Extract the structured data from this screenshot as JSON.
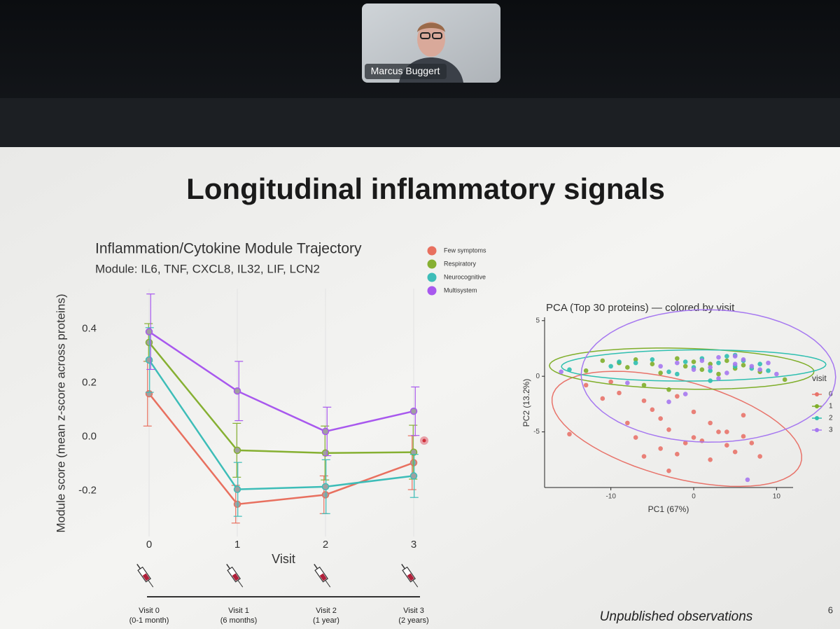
{
  "video_tile": {
    "participant": "Marcus Buggert"
  },
  "slide": {
    "title": "Longitudinal inflammatory signals",
    "footer": "Unpublished observations",
    "page_number": 6
  },
  "chart_data": [
    {
      "type": "line",
      "title": "Inflammation/Cytokine Module Trajectory",
      "subtitle": "Module: IL6, TNF, CXCL8, IL32, LIF, LCN2",
      "xlabel": "Visit",
      "ylabel": "Module score (mean z-score across proteins)",
      "categories": [
        "0",
        "1",
        "2",
        "3"
      ],
      "series": [
        {
          "name": "Few symptoms",
          "color": "#e8705f",
          "values": [
            0.16,
            -0.25,
            -0.215,
            -0.096
          ],
          "errors": [
            0.12,
            0.07,
            0.07,
            0.1
          ]
        },
        {
          "name": "Respiratory",
          "color": "#86b032",
          "values": [
            0.35,
            -0.05,
            -0.06,
            -0.057
          ],
          "errors": [
            0.07,
            0.1,
            0.1,
            0.1
          ]
        },
        {
          "name": "Neurocognitive",
          "color": "#3dbdb8",
          "values": [
            0.285,
            -0.195,
            -0.185,
            -0.145
          ],
          "errors": [
            0.12,
            0.1,
            0.1,
            0.08
          ]
        },
        {
          "name": "Multisystem",
          "color": "#a858ee",
          "values": [
            0.39,
            0.17,
            0.02,
            0.095
          ],
          "errors": [
            0.14,
            0.11,
            0.09,
            0.09
          ]
        }
      ],
      "ylim": [
        -0.37,
        0.55
      ],
      "yticks": [
        -0.2,
        {
          "value": 0,
          "label": "0.0"
        },
        0.2,
        0.4
      ],
      "legend": "top right",
      "grid": true
    },
    {
      "type": "scatter",
      "title": "PCA (Top 30 proteins) — colored by visit",
      "xlabel": "PC1 (67%)",
      "ylabel": "PC2 (13.2%)",
      "legend_title": "visit",
      "series": [
        {
          "name": "0",
          "color": "#e8736a",
          "x": [
            -15,
            -13,
            -11,
            -9,
            -8,
            -7,
            -6,
            -5,
            -4,
            -3,
            -2,
            -1,
            0,
            1,
            2,
            3,
            4,
            5,
            6,
            7,
            8,
            -6,
            -4,
            -2,
            0,
            2,
            4,
            6,
            -10,
            -3
          ],
          "y": [
            -5.2,
            -0.8,
            -2,
            -1.5,
            -4.2,
            -5.5,
            -7.2,
            -3,
            -6.5,
            -4.8,
            -7,
            -6,
            -5.5,
            -5.8,
            -7.5,
            -5,
            -6.2,
            -6.8,
            -5.4,
            -6,
            -7.2,
            -2.2,
            -3.8,
            -1.8,
            -3.2,
            -4.2,
            -5,
            -3.5,
            -0.5,
            -8.5
          ]
        },
        {
          "name": "1",
          "color": "#7fae2a",
          "x": [
            -13,
            -11,
            -9,
            -8,
            -7,
            -6,
            -5,
            -4,
            -3,
            -2,
            -1,
            0,
            1,
            2,
            3,
            4,
            5,
            6,
            8,
            11
          ],
          "y": [
            0.5,
            1.4,
            1.2,
            0.8,
            1.5,
            -0.8,
            1.1,
            0.3,
            -1.2,
            1.6,
            0.9,
            1.3,
            0.6,
            1.1,
            0.2,
            1.4,
            0.7,
            1,
            0.4,
            -0.3
          ]
        },
        {
          "name": "2",
          "color": "#2fbfb0",
          "x": [
            -15,
            -10,
            -7,
            -5,
            -3,
            -1,
            0,
            1,
            2,
            3,
            4,
            5,
            6,
            7,
            8,
            -2,
            2,
            5,
            -9,
            9
          ],
          "y": [
            0.6,
            0.9,
            1.2,
            1.5,
            0.4,
            1.3,
            0.8,
            1.6,
            0.5,
            1.2,
            1.8,
            0.9,
            1.4,
            0.7,
            1.1,
            0.2,
            -0.4,
            1.9,
            1.3,
            0.5
          ]
        },
        {
          "name": "3",
          "color": "#a678f0",
          "x": [
            -16,
            -8,
            -4,
            -2,
            0,
            1,
            2,
            3,
            4,
            5,
            6,
            7,
            8,
            9,
            -1,
            3,
            5,
            10,
            -3,
            6.5
          ],
          "y": [
            0.4,
            -0.6,
            0.9,
            1.2,
            0.6,
            1.4,
            0.8,
            1.7,
            0.3,
            1.1,
            1.5,
            0.9,
            0.6,
            1.2,
            -1.6,
            -0.2,
            1.8,
            0.2,
            -2.3,
            -9.3
          ]
        }
      ],
      "xlim": [
        -18,
        12
      ],
      "ylim": [
        -10,
        5.3
      ],
      "xticks": [
        -10,
        0,
        10
      ],
      "yticks": [
        -5,
        0,
        5
      ],
      "ellipses": true,
      "legend": "right"
    }
  ],
  "timeline": {
    "visits": [
      {
        "label": "Visit 0",
        "sublabel": "(0-1 month)"
      },
      {
        "label": "Visit 1",
        "sublabel": "(6 months)"
      },
      {
        "label": "Visit 2",
        "sublabel": "(1 year)"
      },
      {
        "label": "Visit 3",
        "sublabel": "(2 years)"
      }
    ]
  }
}
